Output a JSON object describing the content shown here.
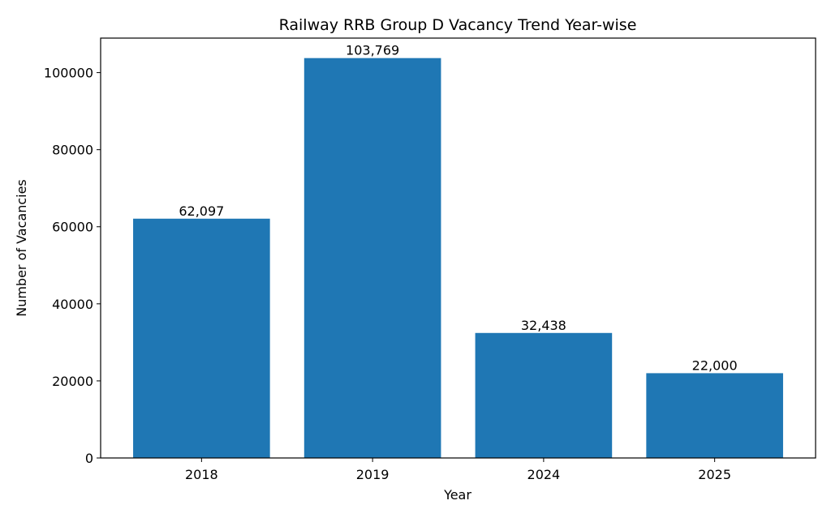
{
  "chart_data": {
    "type": "bar",
    "title": "Railway RRB Group D Vacancy Trend Year-wise",
    "xlabel": "Year",
    "ylabel": "Number of Vacancies",
    "categories": [
      "2018",
      "2019",
      "2024",
      "2025"
    ],
    "values": [
      62097,
      103769,
      32438,
      22000
    ],
    "data_labels": [
      "62,097",
      "103,769",
      "32,438",
      "22,000"
    ],
    "ylim": [
      0,
      108957
    ],
    "yticks": [
      0,
      20000,
      40000,
      60000,
      80000,
      100000
    ],
    "ytick_labels": [
      "0",
      "20000",
      "40000",
      "60000",
      "80000",
      "100000"
    ],
    "grid": false,
    "bar_color": "#1f77b4"
  }
}
